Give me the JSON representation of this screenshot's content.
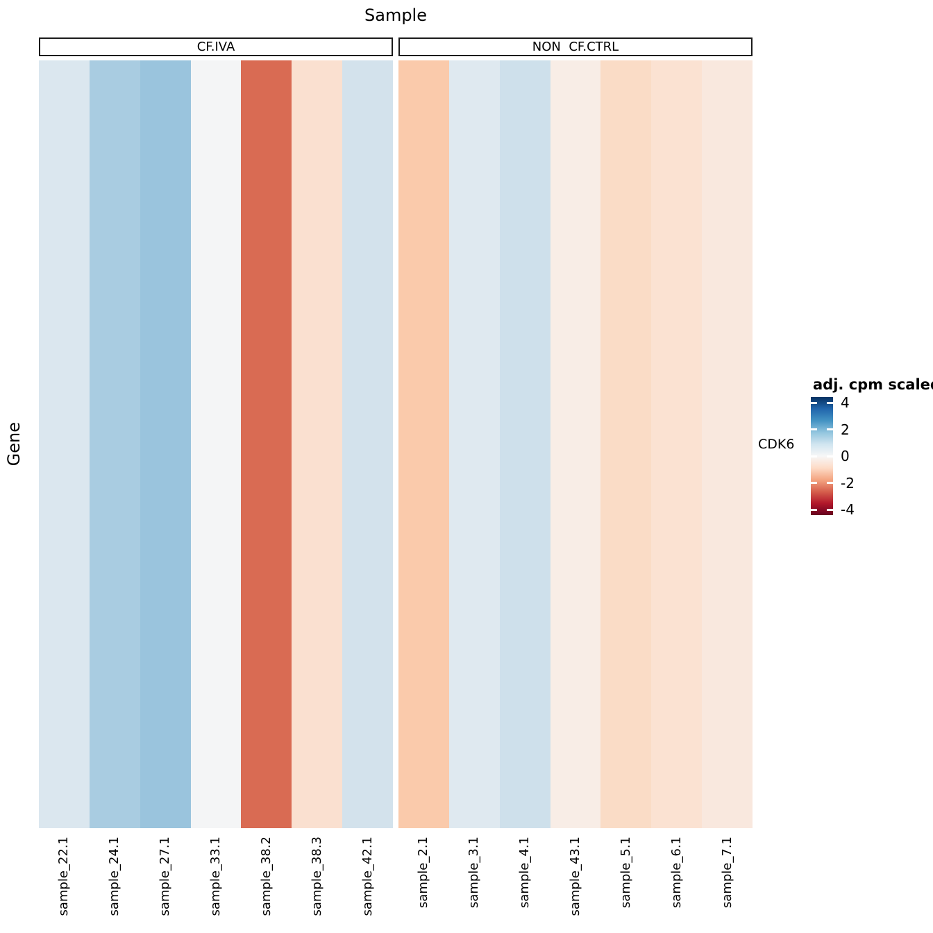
{
  "title": "Sample",
  "y_axis_title": "Gene",
  "row_label": "CDK6",
  "legend": {
    "title": "adj. cpm scaled",
    "tick_labels": [
      "4",
      "2",
      "0",
      "-2",
      "-4"
    ],
    "tick_values": [
      4,
      2,
      0,
      -2,
      -4
    ],
    "gradient_top_to_bottom": [
      "#053061",
      "#2166ac",
      "#4393c3",
      "#92c5de",
      "#d1e5f0",
      "#f7f7f7",
      "#fddbc7",
      "#f4a582",
      "#d6604d",
      "#b2182b",
      "#67001f"
    ]
  },
  "chart_data": {
    "type": "heatmap",
    "title": "Sample",
    "xlabel": "Sample",
    "ylabel": "Gene",
    "legend_title": "adj. cpm scaled",
    "legend_ticks": [
      4,
      2,
      0,
      -2,
      -4
    ],
    "scale_limits": [
      -4.4,
      4.4
    ],
    "rows": [
      "CDK6"
    ],
    "facets": [
      {
        "label": "CF.IVA",
        "samples": [
          "sample_22.1",
          "sample_24.1",
          "sample_27.1",
          "sample_33.1",
          "sample_38.2",
          "sample_38.3",
          "sample_42.1"
        ],
        "values": [
          0.8,
          1.8,
          2.0,
          0.1,
          -2.7,
          -0.65,
          0.95
        ],
        "colors": [
          "#dbe7ef",
          "#a9cce1",
          "#9ac4dd",
          "#f4f5f6",
          "#d96b53",
          "#fae0d0",
          "#d3e2ec"
        ]
      },
      {
        "label": "NON  CF.CTRL",
        "samples": [
          "sample_2.1",
          "sample_3.1",
          "sample_4.1",
          "sample_43.1",
          "sample_5.1",
          "sample_6.1",
          "sample_7.1"
        ],
        "values": [
          -1.4,
          0.7,
          1.05,
          -0.25,
          -0.8,
          -0.6,
          -0.4
        ],
        "colors": [
          "#facaab",
          "#dfe9f0",
          "#cee0eb",
          "#f8ede6",
          "#fadcc6",
          "#fbe2d2",
          "#f9e8de"
        ]
      }
    ]
  }
}
